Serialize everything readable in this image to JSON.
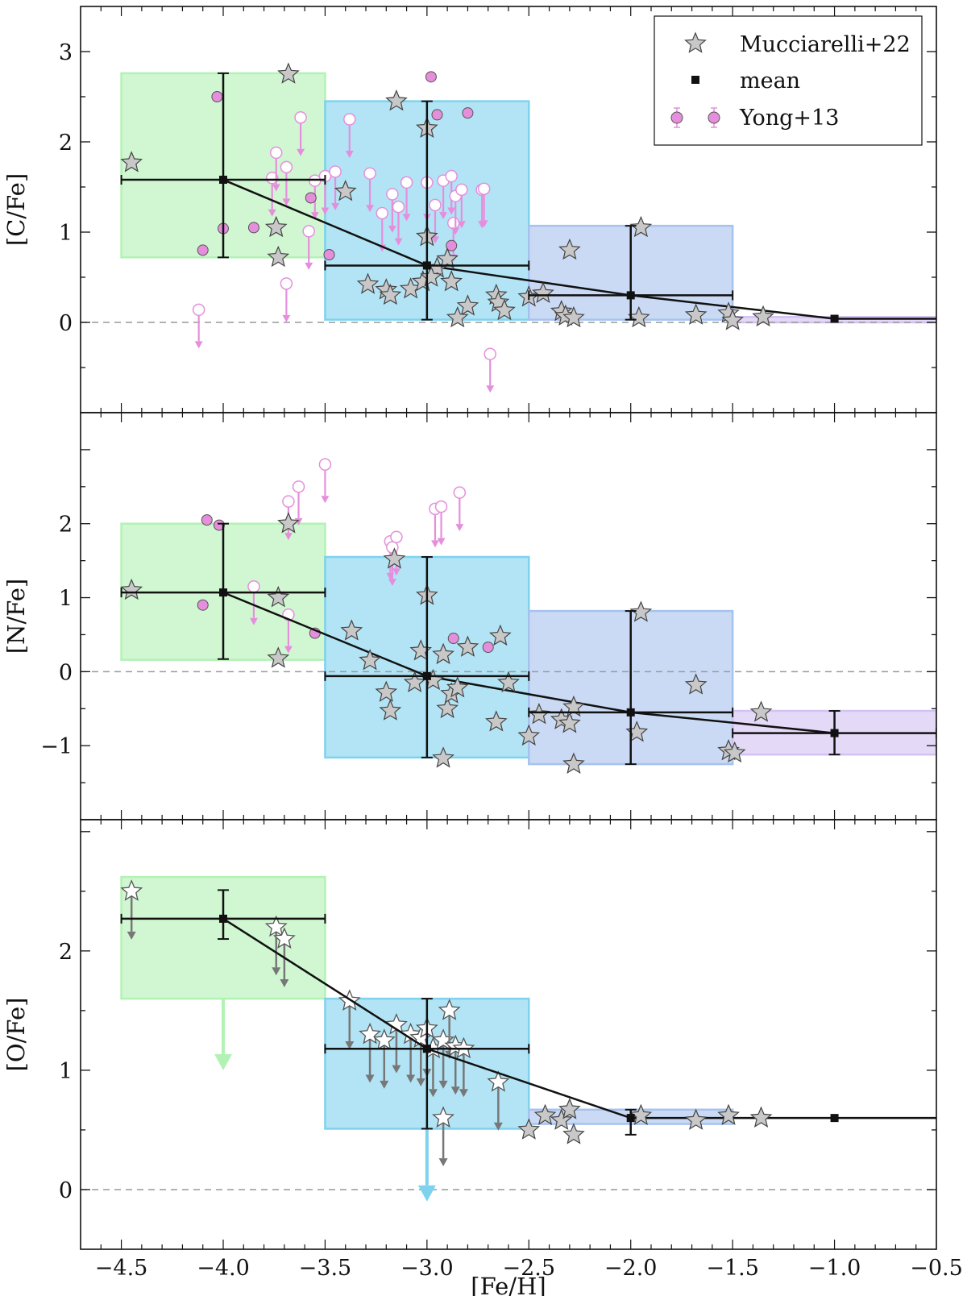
{
  "chart_data": {
    "type": "scatter",
    "xlabel": "[Fe/H]",
    "xlim": [
      -4.7,
      -0.5
    ],
    "xticks": [
      -4.5,
      -4.0,
      -3.5,
      -3.0,
      -2.5,
      -2.0,
      -1.5,
      -1.0,
      -0.5
    ],
    "xtick_labels": [
      "−4.5",
      "−4.0",
      "−3.5",
      "−3.0",
      "−2.5",
      "−2.0",
      "−1.5",
      "−1.0",
      "−0.5"
    ],
    "legend": {
      "placement": "top-right",
      "entries": [
        "Mucciarelli+22",
        "mean",
        "Yong+13"
      ]
    },
    "colors": {
      "bin1": "#b2f2b4",
      "bin2": "#7fd2ee",
      "bin3": "#a6c2ee",
      "bin4": "#d2c2f2",
      "yong": "#e58fdc",
      "star_fill": "#c8c8c8",
      "mean": "#111111"
    },
    "panels": [
      {
        "ylabel": "[C/Fe]",
        "ylim": [
          -1.0,
          3.5
        ],
        "yticks": [
          0,
          1,
          2,
          3
        ],
        "ytick_labels": [
          "0",
          "1",
          "2",
          "3"
        ],
        "bins": [
          {
            "x0": -4.5,
            "x1": -3.5,
            "y0": 0.72,
            "y1": 2.76,
            "color": "bin1"
          },
          {
            "x0": -3.5,
            "x1": -2.5,
            "y0": 0.03,
            "y1": 2.45,
            "color": "bin2"
          },
          {
            "x0": -2.5,
            "x1": -1.5,
            "y0": 0.03,
            "y1": 1.07,
            "color": "bin3"
          },
          {
            "x0": -1.5,
            "x1": -0.5,
            "y0": 0.0,
            "y1": 0.06,
            "color": "bin4"
          }
        ],
        "means": [
          {
            "x": -4.0,
            "y": 1.58,
            "xerr": 0.5,
            "yerr": [
              0.86,
              1.18
            ]
          },
          {
            "x": -3.0,
            "y": 0.63,
            "xerr": 0.5,
            "yerr": [
              0.6,
              1.82
            ]
          },
          {
            "x": -2.0,
            "y": 0.3,
            "xerr": 0.5,
            "yerr": [
              0.27,
              0.77
            ]
          },
          {
            "x": -1.0,
            "y": 0.04,
            "xerr": 0,
            "yerr": [
              0,
              0
            ]
          }
        ],
        "mean_line": [
          [
            -4.0,
            1.58
          ],
          [
            -3.0,
            0.63
          ],
          [
            -2.0,
            0.3
          ],
          [
            -1.0,
            0.04
          ],
          [
            -0.5,
            0.04
          ]
        ],
        "stars": [
          {
            "x": -4.45,
            "y": 1.77
          },
          {
            "x": -3.68,
            "y": 2.75
          },
          {
            "x": -3.74,
            "y": 1.05
          },
          {
            "x": -3.73,
            "y": 0.72
          },
          {
            "x": -3.4,
            "y": 1.45
          },
          {
            "x": -3.15,
            "y": 2.45
          },
          {
            "x": -3.0,
            "y": 2.15
          },
          {
            "x": -3.0,
            "y": 0.95
          },
          {
            "x": -2.95,
            "y": 0.6
          },
          {
            "x": -2.9,
            "y": 0.7
          },
          {
            "x": -3.29,
            "y": 0.42
          },
          {
            "x": -3.2,
            "y": 0.36
          },
          {
            "x": -3.18,
            "y": 0.3
          },
          {
            "x": -3.08,
            "y": 0.37
          },
          {
            "x": -3.02,
            "y": 0.45
          },
          {
            "x": -2.98,
            "y": 0.5
          },
          {
            "x": -2.88,
            "y": 0.45
          },
          {
            "x": -2.8,
            "y": 0.18
          },
          {
            "x": -2.85,
            "y": 0.05
          },
          {
            "x": -2.66,
            "y": 0.3
          },
          {
            "x": -2.65,
            "y": 0.22
          },
          {
            "x": -2.62,
            "y": 0.13
          },
          {
            "x": -2.5,
            "y": 0.28
          },
          {
            "x": -2.43,
            "y": 0.32
          },
          {
            "x": -2.3,
            "y": 0.8
          },
          {
            "x": -2.34,
            "y": 0.12
          },
          {
            "x": -2.32,
            "y": 0.07
          },
          {
            "x": -2.28,
            "y": 0.05
          },
          {
            "x": -1.95,
            "y": 1.05
          },
          {
            "x": -1.96,
            "y": 0.05
          },
          {
            "x": -1.68,
            "y": 0.08
          },
          {
            "x": -1.52,
            "y": 0.1
          },
          {
            "x": -1.5,
            "y": 0.02
          },
          {
            "x": -1.35,
            "y": 0.06
          }
        ],
        "star_limits": [],
        "yong_detections": [
          {
            "x": -4.03,
            "y": 2.5
          },
          {
            "x": -4.1,
            "y": 0.8
          },
          {
            "x": -4.0,
            "y": 1.04
          },
          {
            "x": -3.85,
            "y": 1.05
          },
          {
            "x": -3.57,
            "y": 1.38
          },
          {
            "x": -3.48,
            "y": 0.75
          },
          {
            "x": -2.98,
            "y": 2.72
          },
          {
            "x": -2.95,
            "y": 2.3
          },
          {
            "x": -2.8,
            "y": 2.32
          },
          {
            "x": -2.88,
            "y": 0.85
          }
        ],
        "yong_limits": [
          {
            "x": -4.12,
            "y": 0.14
          },
          {
            "x": -3.69,
            "y": 0.43
          },
          {
            "x": -3.58,
            "y": 1.01
          },
          {
            "x": -3.62,
            "y": 2.27
          },
          {
            "x": -3.76,
            "y": 1.6
          },
          {
            "x": -3.74,
            "y": 1.88
          },
          {
            "x": -3.69,
            "y": 1.72
          },
          {
            "x": -3.55,
            "y": 1.57
          },
          {
            "x": -3.5,
            "y": 1.62
          },
          {
            "x": -3.45,
            "y": 1.67
          },
          {
            "x": -3.38,
            "y": 2.25
          },
          {
            "x": -3.28,
            "y": 1.65
          },
          {
            "x": -3.22,
            "y": 1.21
          },
          {
            "x": -3.17,
            "y": 1.42
          },
          {
            "x": -3.14,
            "y": 1.28
          },
          {
            "x": -3.1,
            "y": 1.55
          },
          {
            "x": -3.0,
            "y": 1.55
          },
          {
            "x": -2.96,
            "y": 1.3
          },
          {
            "x": -2.92,
            "y": 1.57
          },
          {
            "x": -2.88,
            "y": 1.62
          },
          {
            "x": -2.87,
            "y": 1.1
          },
          {
            "x": -2.86,
            "y": 1.4
          },
          {
            "x": -2.83,
            "y": 1.47
          },
          {
            "x": -2.73,
            "y": 1.47
          },
          {
            "x": -2.72,
            "y": 1.48
          },
          {
            "x": -2.69,
            "y": -0.35
          }
        ]
      },
      {
        "ylabel": "[N/Fe]",
        "ylim": [
          -2.0,
          3.5
        ],
        "yticks": [
          -1,
          0,
          1,
          2
        ],
        "ytick_labels": [
          "−1",
          "0",
          "1",
          "2"
        ],
        "bins": [
          {
            "x0": -4.5,
            "x1": -3.5,
            "y0": 0.16,
            "y1": 2.0,
            "color": "bin1"
          },
          {
            "x0": -3.5,
            "x1": -2.5,
            "y0": -1.16,
            "y1": 1.55,
            "color": "bin2"
          },
          {
            "x0": -2.5,
            "x1": -1.5,
            "y0": -1.25,
            "y1": 0.82,
            "color": "bin3"
          },
          {
            "x0": -1.5,
            "x1": -0.5,
            "y0": -1.12,
            "y1": -0.53,
            "color": "bin4"
          }
        ],
        "means": [
          {
            "x": -4.0,
            "y": 1.07,
            "xerr": 0.5,
            "yerr": [
              0.9,
              0.93
            ]
          },
          {
            "x": -3.0,
            "y": -0.06,
            "xerr": 0.5,
            "yerr": [
              1.1,
              1.61
            ]
          },
          {
            "x": -2.0,
            "y": -0.55,
            "xerr": 0.5,
            "yerr": [
              0.7,
              1.37
            ]
          },
          {
            "x": -1.0,
            "y": -0.83,
            "xerr": 0.5,
            "yerr": [
              0.29,
              0.3
            ]
          }
        ],
        "mean_line": [
          [
            -4.0,
            1.07
          ],
          [
            -3.0,
            -0.06
          ],
          [
            -2.0,
            -0.55
          ],
          [
            -1.0,
            -0.83
          ]
        ],
        "stars": [
          {
            "x": -4.45,
            "y": 1.1
          },
          {
            "x": -3.68,
            "y": 2.0
          },
          {
            "x": -3.73,
            "y": 1.0
          },
          {
            "x": -3.73,
            "y": 0.18
          },
          {
            "x": -3.37,
            "y": 0.55
          },
          {
            "x": -3.28,
            "y": 0.15
          },
          {
            "x": -3.2,
            "y": -0.28
          },
          {
            "x": -3.18,
            "y": -0.53
          },
          {
            "x": -3.16,
            "y": 1.52
          },
          {
            "x": -3.06,
            "y": -0.15
          },
          {
            "x": -3.03,
            "y": 0.28
          },
          {
            "x": -3.0,
            "y": 1.03
          },
          {
            "x": -2.97,
            "y": -0.12
          },
          {
            "x": -2.92,
            "y": 0.23
          },
          {
            "x": -2.9,
            "y": -0.5
          },
          {
            "x": -2.88,
            "y": -0.3
          },
          {
            "x": -2.85,
            "y": -0.22
          },
          {
            "x": -2.8,
            "y": 0.33
          },
          {
            "x": -2.92,
            "y": -1.17
          },
          {
            "x": -2.66,
            "y": -0.68
          },
          {
            "x": -2.64,
            "y": 0.48
          },
          {
            "x": -2.6,
            "y": -0.15
          },
          {
            "x": -2.5,
            "y": -0.87
          },
          {
            "x": -2.45,
            "y": -0.58
          },
          {
            "x": -2.34,
            "y": -0.65
          },
          {
            "x": -2.3,
            "y": -0.7
          },
          {
            "x": -2.28,
            "y": -0.48
          },
          {
            "x": -2.28,
            "y": -1.25
          },
          {
            "x": -1.95,
            "y": 0.8
          },
          {
            "x": -1.97,
            "y": -0.82
          },
          {
            "x": -1.68,
            "y": -0.18
          },
          {
            "x": -1.52,
            "y": -1.07
          },
          {
            "x": -1.49,
            "y": -1.1
          },
          {
            "x": -1.36,
            "y": -0.55
          }
        ],
        "star_limits": [],
        "yong_detections": [
          {
            "x": -4.08,
            "y": 2.05
          },
          {
            "x": -4.02,
            "y": 1.98
          },
          {
            "x": -4.1,
            "y": 0.9
          },
          {
            "x": -3.55,
            "y": 0.52
          },
          {
            "x": -2.87,
            "y": 0.45
          },
          {
            "x": -2.7,
            "y": 0.33
          }
        ],
        "yong_limits": [
          {
            "x": -3.68,
            "y": 2.3
          },
          {
            "x": -3.63,
            "y": 2.5
          },
          {
            "x": -3.5,
            "y": 2.8
          },
          {
            "x": -3.18,
            "y": 1.76
          },
          {
            "x": -3.15,
            "y": 1.82
          },
          {
            "x": -2.96,
            "y": 2.2
          },
          {
            "x": -2.93,
            "y": 2.23
          },
          {
            "x": -2.84,
            "y": 2.42
          },
          {
            "x": -3.17,
            "y": 1.68
          },
          {
            "x": -3.85,
            "y": 1.15
          },
          {
            "x": -3.68,
            "y": 0.77
          }
        ]
      },
      {
        "ylabel": "[O/Fe]",
        "ylim": [
          -0.5,
          3.1
        ],
        "yticks": [
          0,
          1,
          2
        ],
        "ytick_labels": [
          "0",
          "1",
          "2"
        ],
        "bins": [
          {
            "x0": -4.5,
            "x1": -3.5,
            "y0": 1.6,
            "y1": 2.62,
            "color": "bin1"
          },
          {
            "x0": -3.5,
            "x1": -2.5,
            "y0": 0.51,
            "y1": 1.6,
            "color": "bin2"
          },
          {
            "x0": -2.5,
            "x1": -1.5,
            "y0": 0.55,
            "y1": 0.67,
            "color": "bin3"
          }
        ],
        "means": [
          {
            "x": -4.0,
            "y": 2.27,
            "xerr": 0.5,
            "yerr": [
              0.17,
              0.24
            ]
          },
          {
            "x": -3.0,
            "y": 1.18,
            "xerr": 0.5,
            "yerr": [
              0.67,
              0.42
            ]
          },
          {
            "x": -2.0,
            "y": 0.6,
            "xerr": 0,
            "yerr": [
              0.14,
              0.07
            ]
          },
          {
            "x": -1.0,
            "y": 0.6,
            "xerr": 0,
            "yerr": [
              0,
              0
            ]
          }
        ],
        "mean_line": [
          [
            -4.0,
            2.27
          ],
          [
            -3.0,
            1.18
          ],
          [
            -2.0,
            0.6
          ],
          [
            -1.0,
            0.6
          ],
          [
            -0.5,
            0.6
          ]
        ],
        "stars": [
          {
            "x": -2.5,
            "y": 0.5
          },
          {
            "x": -2.42,
            "y": 0.62
          },
          {
            "x": -2.34,
            "y": 0.58
          },
          {
            "x": -2.3,
            "y": 0.67
          },
          {
            "x": -2.28,
            "y": 0.46
          },
          {
            "x": -1.95,
            "y": 0.62
          },
          {
            "x": -1.68,
            "y": 0.58
          },
          {
            "x": -1.52,
            "y": 0.62
          },
          {
            "x": -1.36,
            "y": 0.6
          }
        ],
        "star_limits": [
          {
            "x": -4.45,
            "y": 2.5
          },
          {
            "x": -3.74,
            "y": 2.2
          },
          {
            "x": -3.7,
            "y": 2.1
          },
          {
            "x": -3.38,
            "y": 1.58
          },
          {
            "x": -3.28,
            "y": 1.3
          },
          {
            "x": -3.21,
            "y": 1.25
          },
          {
            "x": -3.15,
            "y": 1.38
          },
          {
            "x": -3.08,
            "y": 1.3
          },
          {
            "x": -3.03,
            "y": 1.27
          },
          {
            "x": -3.0,
            "y": 1.35
          },
          {
            "x": -2.97,
            "y": 1.18
          },
          {
            "x": -2.92,
            "y": 1.25
          },
          {
            "x": -2.89,
            "y": 1.5
          },
          {
            "x": -2.86,
            "y": 1.2
          },
          {
            "x": -2.82,
            "y": 1.18
          },
          {
            "x": -2.92,
            "y": 0.6
          },
          {
            "x": -2.65,
            "y": 0.9
          }
        ],
        "mean_limits": [
          {
            "x": -4.0,
            "y": 1.6,
            "to": 1.0,
            "color": "bin1"
          },
          {
            "x": -3.0,
            "y": 0.51,
            "to": -0.1,
            "color": "bin2"
          }
        ],
        "yong_detections": [],
        "yong_limits": []
      }
    ]
  }
}
